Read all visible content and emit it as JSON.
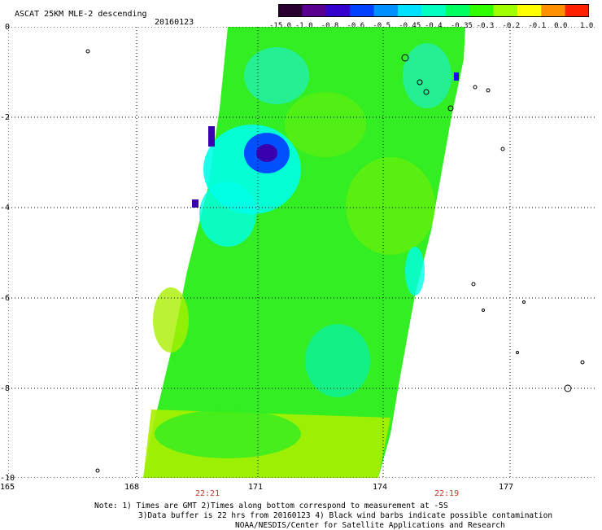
{
  "header": {
    "title": "ASCAT 25KM MLE-2 descending",
    "date": "20160123"
  },
  "colorbar": {
    "labels": [
      "-15.0",
      "-1.0",
      "-0.8",
      "-0.6",
      "-0.5",
      "-0.45",
      "-0.4",
      "-0.35",
      "-0.3",
      "-0.2",
      "-0.1",
      "0.0",
      "1.0"
    ],
    "colors": [
      "#2a0030",
      "#5a0090",
      "#3300cc",
      "#0040ff",
      "#0090ff",
      "#00e0ff",
      "#00ffc0",
      "#00ff60",
      "#30ff00",
      "#a0ff00",
      "#ffff00",
      "#ff9000",
      "#ff2000"
    ]
  },
  "axes": {
    "lat_labels": [
      "0",
      "-2",
      "-4",
      "-6",
      "-8",
      "-10"
    ],
    "lon_labels": [
      "165",
      "168",
      "171",
      "174",
      "177"
    ]
  },
  "times": {
    "left": "22:21",
    "right": "22:19"
  },
  "notes": {
    "line1": "Note: 1) Times are GMT 2)Times along bottom correspond to measurement at -5S",
    "line2": "3)Data buffer is 22 hrs from 20160123 4) Black wind barbs indicate possible contamination",
    "line3": "NOAA/NESDIS/Center for Satellite Applications and Research"
  },
  "swath": {
    "base_color": "#33ee22",
    "south_color": "#a8f000",
    "cyan_color": "#00ffe8",
    "blue_color": "#0050ff",
    "core_color": "#3a00b0"
  }
}
